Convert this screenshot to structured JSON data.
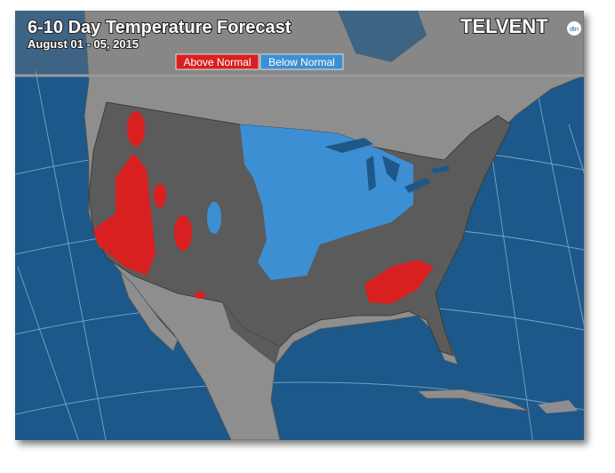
{
  "header": {
    "title": "6-10 Day Temperature Forecast",
    "subtitle": "August 01 - 05, 2015",
    "logo": "TELVENT",
    "logo_badge": "dtn"
  },
  "legend": [
    {
      "label": "Above Normal",
      "color": "#d92020"
    },
    {
      "label": "Below Normal",
      "color": "#3d8fd3"
    }
  ]
}
